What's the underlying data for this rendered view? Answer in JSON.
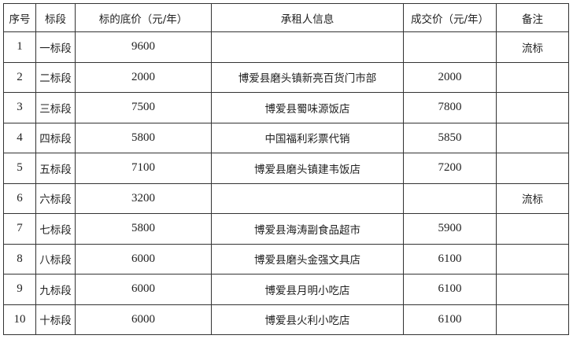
{
  "headers": [
    "序号",
    "标段",
    "标的底价（元/年）",
    "承租人信息",
    "成交价（元/年）",
    "备注"
  ],
  "rows": [
    {
      "no": "1",
      "section": "一标段",
      "base_price": "9600",
      "lessee": "",
      "deal_price": "",
      "remark": "流标"
    },
    {
      "no": "2",
      "section": "二标段",
      "base_price": "2000",
      "lessee": "博爱县磨头镇新亮百货门市部",
      "deal_price": "2000",
      "remark": ""
    },
    {
      "no": "3",
      "section": "三标段",
      "base_price": "7500",
      "lessee": "博爱县蜀味源饭店",
      "deal_price": "7800",
      "remark": ""
    },
    {
      "no": "4",
      "section": "四标段",
      "base_price": "5800",
      "lessee": "中国福利彩票代销",
      "deal_price": "5850",
      "remark": ""
    },
    {
      "no": "5",
      "section": "五标段",
      "base_price": "7100",
      "lessee": "博爱县磨头镇建韦饭店",
      "deal_price": "7200",
      "remark": ""
    },
    {
      "no": "6",
      "section": "六标段",
      "base_price": "3200",
      "lessee": "",
      "deal_price": "",
      "remark": "流标"
    },
    {
      "no": "7",
      "section": "七标段",
      "base_price": "5800",
      "lessee": "博爱县海涛副食品超市",
      "deal_price": "5900",
      "remark": ""
    },
    {
      "no": "8",
      "section": "八标段",
      "base_price": "6000",
      "lessee": "博爱县磨头金强文具店",
      "deal_price": "6100",
      "remark": ""
    },
    {
      "no": "9",
      "section": "九标段",
      "base_price": "6000",
      "lessee": "博爱县月明小吃店",
      "deal_price": "6100",
      "remark": ""
    },
    {
      "no": "10",
      "section": "十标段",
      "base_price": "6000",
      "lessee": "博爱县火利小吃店",
      "deal_price": "6100",
      "remark": ""
    }
  ]
}
